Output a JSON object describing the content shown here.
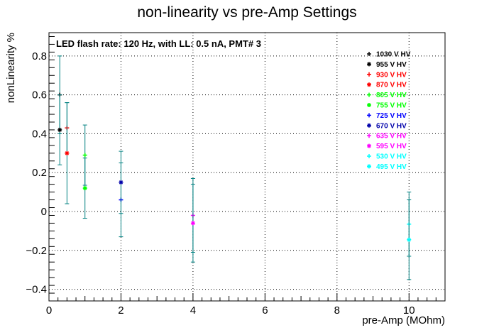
{
  "chart_data": {
    "type": "scatter",
    "title": "non-linearity vs pre-Amp Settings",
    "xlabel": "pre-Amp (MOhm)",
    "ylabel": "nonLinearity %",
    "annotation": "LED flash rate: 120 Hz, with LL: 0.5 nA, PMT# 3",
    "xlim": [
      0,
      11
    ],
    "ylim": [
      -0.46,
      0.92
    ],
    "x_ticks": [
      0,
      2,
      4,
      6,
      8,
      10
    ],
    "x_tick_labels": [
      "0",
      "2",
      "4",
      "6",
      "8",
      "10"
    ],
    "y_ticks": [
      -0.4,
      -0.2,
      0,
      0.2,
      0.4,
      0.6,
      0.8
    ],
    "y_tick_labels": [
      "−0.4",
      "−0.2",
      "0",
      "0.2",
      "0.4",
      "0.6",
      "0.8"
    ],
    "grid": true,
    "legend_position": "top-right",
    "error_bar_color": "#008080",
    "series": [
      {
        "name": "1030 V HV",
        "color": "#000000",
        "marker": "plus",
        "points": [
          {
            "x": 0.3,
            "y": 0.6,
            "err": 0.2
          }
        ]
      },
      {
        "name": "955 V HV",
        "color": "#000000",
        "marker": "star",
        "points": [
          {
            "x": 0.3,
            "y": 0.42,
            "err": 0.18
          }
        ]
      },
      {
        "name": "930 V HV",
        "color": "#ff0000",
        "marker": "plus",
        "points": [
          {
            "x": 0.5,
            "y": 0.43,
            "err": 0.13
          }
        ]
      },
      {
        "name": "870 V HV",
        "color": "#ff0000",
        "marker": "star",
        "points": [
          {
            "x": 0.5,
            "y": 0.3,
            "err": 0.26
          }
        ]
      },
      {
        "name": "805 V HV",
        "color": "#00ff00",
        "marker": "plus",
        "points": [
          {
            "x": 1,
            "y": 0.29,
            "err": 0.155
          }
        ]
      },
      {
        "name": "755 V HV",
        "color": "#00ff00",
        "marker": "star",
        "points": [
          {
            "x": 1,
            "y": 0.12,
            "err": 0.155
          }
        ]
      },
      {
        "name": "725 V HV",
        "color": "#0000ff",
        "marker": "plus",
        "points": [
          {
            "x": 2,
            "y": 0.06,
            "err": 0.19
          }
        ]
      },
      {
        "name": "670 V HV",
        "color": "#0000aa",
        "marker": "star",
        "points": [
          {
            "x": 2,
            "y": 0.15,
            "err": 0.16
          }
        ]
      },
      {
        "name": "635 V HV",
        "color": "#ff00ff",
        "marker": "plus",
        "points": [
          {
            "x": 4,
            "y": -0.02,
            "err": 0.19
          }
        ]
      },
      {
        "name": "595 V HV",
        "color": "#ff00ff",
        "marker": "star",
        "points": [
          {
            "x": 4,
            "y": -0.06,
            "err": 0.2
          }
        ]
      },
      {
        "name": "530 V HV",
        "color": "#00ffff",
        "marker": "plus",
        "points": [
          {
            "x": 10,
            "y": -0.065,
            "err": 0.165
          }
        ]
      },
      {
        "name": "495 V HV",
        "color": "#00ffff",
        "marker": "star",
        "points": [
          {
            "x": 10,
            "y": -0.145,
            "err": 0.205
          }
        ]
      }
    ]
  }
}
